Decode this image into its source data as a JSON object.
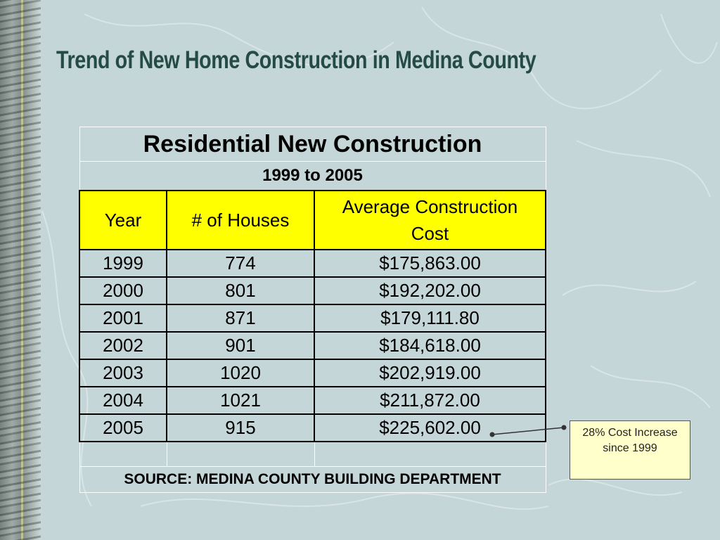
{
  "slide": {
    "title": "Trend of New Home Construction in Medina County"
  },
  "table": {
    "title": "Residential New Construction",
    "subtitle": "1999 to 2005",
    "headers": [
      "Year",
      "# of Houses",
      "Average Construction Cost"
    ],
    "rows": [
      [
        "1999",
        "774",
        "$175,863.00"
      ],
      [
        "2000",
        "801",
        "$192,202.00"
      ],
      [
        "2001",
        "871",
        "$179,111.80"
      ],
      [
        "2002",
        "901",
        "$184,618.00"
      ],
      [
        "2003",
        "1020",
        "$202,919.00"
      ],
      [
        "2004",
        "1021",
        "$211,872.00"
      ],
      [
        "2005",
        "915",
        "$225,602.00"
      ]
    ],
    "source": "SOURCE: MEDINA COUNTY BUILDING DEPARTMENT"
  },
  "callout": {
    "text": "28% Cost Increase since 1999"
  },
  "colors": {
    "background": "#c5d6d8",
    "title": "#244b48",
    "header_fill": "#ffff00",
    "callout_fill": "#ffffcc"
  }
}
